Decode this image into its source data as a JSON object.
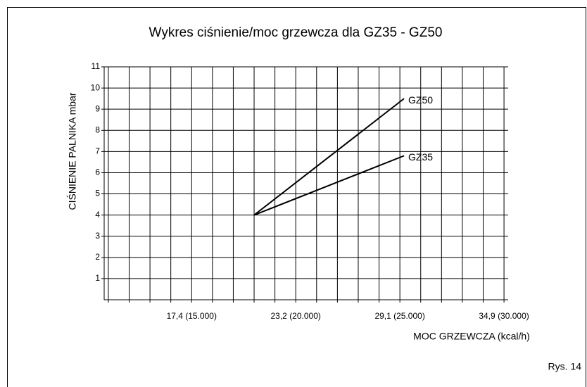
{
  "chart_data": {
    "type": "line",
    "title": "Wykres ciśnienie/moc grzewcza dla GZ35 - GZ50",
    "x_label": "MOC GRZEWCZA (kcal/h)",
    "y_label": "CIŚNIENIE PALNIKA mbar",
    "figure_label": "Rys. 14",
    "series": [
      {
        "name": "GZ50",
        "color": "#000000",
        "x": [
          18000,
          25200
        ],
        "values": [
          4,
          9.5
        ]
      },
      {
        "name": "GZ35",
        "color": "#000000",
        "x": [
          18000,
          25200
        ],
        "values": [
          4,
          6.8
        ]
      }
    ],
    "xlim": [
      10800,
      30200
    ],
    "xticks": [
      {
        "value": 15000,
        "label": "17,4 (15.000)"
      },
      {
        "value": 20000,
        "label": "23,2 (20.000)"
      },
      {
        "value": 25000,
        "label": "29,1 (25.000)"
      },
      {
        "value": 30000,
        "label": "34,9 (30.000)"
      }
    ],
    "x_minor_ticks": [
      11000,
      12000,
      13000,
      14000,
      16000,
      17000,
      18000,
      19000,
      21000,
      22000,
      23000,
      24000,
      26000,
      27000,
      28000,
      29000
    ],
    "ylim": [
      0,
      11
    ],
    "yticks": [
      1,
      2,
      3,
      4,
      5,
      6,
      7,
      8,
      9,
      10,
      11
    ],
    "grid": true,
    "legend": "line-end"
  }
}
